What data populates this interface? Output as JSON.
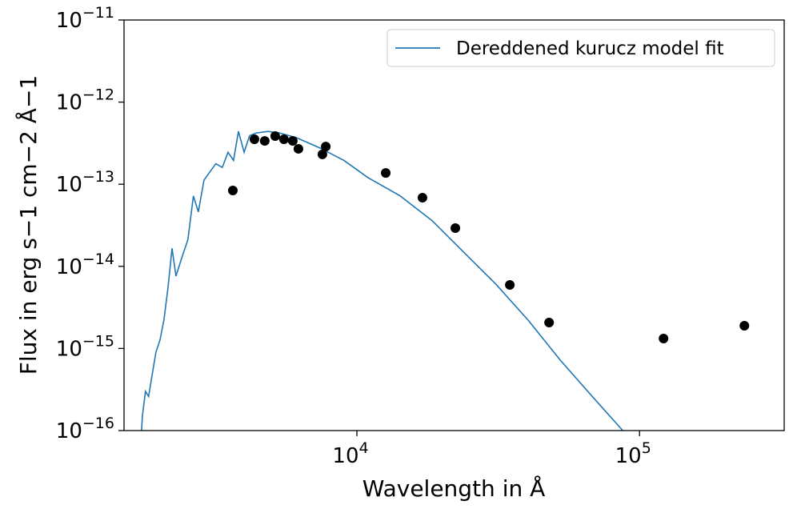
{
  "chart_data": {
    "type": "line+scatter",
    "xlabel": "Wavelength in Å",
    "ylabel": "Flux in erg s−1 cm−2 Å−1",
    "xscale": "log",
    "yscale": "log",
    "xlim": [
      1500,
      325000
    ],
    "ylim": [
      1e-16,
      1e-11
    ],
    "xticks": [
      {
        "value": 10000,
        "label": "104"
      },
      {
        "value": 100000,
        "label": "105"
      }
    ],
    "yticks": [
      {
        "value": 1e-16,
        "label": "10−16"
      },
      {
        "value": 1e-15,
        "label": "10−15"
      },
      {
        "value": 1e-14,
        "label": "10−14"
      },
      {
        "value": 1e-13,
        "label": "10−13"
      },
      {
        "value": 1e-12,
        "label": "10−12"
      },
      {
        "value": 1e-11,
        "label": "10−11"
      }
    ],
    "legend": "upper right",
    "series": [
      {
        "name": "Dereddened kurucz model fit",
        "color": "#1f77b4",
        "kind": "line",
        "x": [
          1730,
          1742,
          1786,
          1832,
          1883,
          1945,
          2010,
          2075,
          2145,
          2218,
          2290,
          2410,
          2523,
          2640,
          2748,
          2877,
          3012,
          3170,
          3340,
          3500,
          3660,
          3810,
          3990,
          4170,
          4395,
          4845,
          5340,
          6095,
          7410,
          9020,
          10960,
          14230,
          18460,
          23970,
          31120,
          40400,
          52440,
          68060,
          87270
        ],
        "values": [
          1e-16,
          1.5e-16,
          3e-16,
          2.6e-16,
          4.6e-16,
          9e-16,
          1.26e-15,
          2.2e-15,
          5.4e-15,
          1.66e-14,
          7.6e-15,
          1.32e-14,
          2.1e-14,
          7.2e-14,
          4.6e-14,
          1.12e-13,
          1.4e-13,
          1.78e-13,
          1.6e-13,
          2.45e-13,
          1.95e-13,
          4.4e-13,
          2.45e-13,
          3.9e-13,
          4.2e-13,
          4.4e-13,
          4.2e-13,
          3.7e-13,
          2.76e-13,
          1.94e-13,
          1.2e-13,
          7.2e-14,
          3.6e-14,
          1.47e-14,
          6e-15,
          2.2e-15,
          7.2e-16,
          2.6e-16,
          1e-16
        ]
      },
      {
        "color": "#000000",
        "kind": "scatter",
        "x": [
          3640,
          4340,
          4720,
          5140,
          5520,
          5930,
          6210,
          7550,
          7760,
          12650,
          17060,
          22300,
          34760,
          47860,
          121600,
          235000
        ],
        "values": [
          8.4e-14,
          3.53e-13,
          3.37e-13,
          3.86e-13,
          3.53e-13,
          3.37e-13,
          2.7e-13,
          2.31e-13,
          2.88e-13,
          1.37e-13,
          6.85e-14,
          2.92e-14,
          5.94e-15,
          2.07e-15,
          1.32e-15,
          1.89e-15
        ]
      }
    ]
  }
}
